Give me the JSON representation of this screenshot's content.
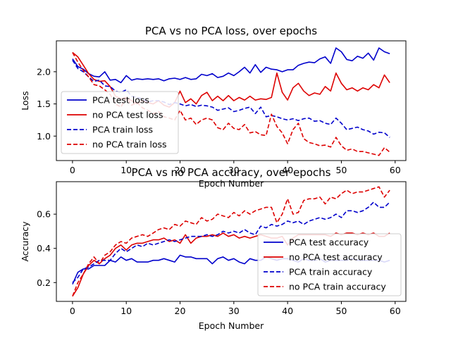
{
  "chart_data": [
    {
      "type": "line",
      "title": "PCA vs no PCA loss, over epochs",
      "xlabel": "Epoch Number",
      "ylabel": "Loss",
      "xlim": [
        -3,
        62
      ],
      "ylim": [
        0.62,
        2.48
      ],
      "xticks": [
        0,
        10,
        20,
        30,
        40,
        50,
        60
      ],
      "yticks": [
        1.0,
        1.5,
        2.0
      ],
      "yticks_labels": [
        "1.0",
        "1.5",
        "2.0"
      ],
      "legend": "lower-left",
      "grid": false,
      "x": [
        0,
        1,
        2,
        3,
        4,
        5,
        6,
        7,
        8,
        9,
        10,
        11,
        12,
        13,
        14,
        15,
        16,
        17,
        18,
        19,
        20,
        21,
        22,
        23,
        24,
        25,
        26,
        27,
        28,
        29,
        30,
        31,
        32,
        33,
        34,
        35,
        36,
        37,
        38,
        39,
        40,
        41,
        42,
        43,
        44,
        45,
        46,
        47,
        48,
        49,
        50,
        51,
        52,
        53,
        54,
        55,
        56,
        57,
        58,
        59
      ],
      "series": [
        {
          "name": "PCA test loss",
          "color": "#0000cc",
          "dash": "solid",
          "values": [
            2.2,
            2.08,
            2.04,
            1.97,
            1.93,
            1.92,
            2.0,
            1.87,
            1.88,
            1.83,
            1.94,
            1.87,
            1.89,
            1.88,
            1.89,
            1.88,
            1.89,
            1.86,
            1.89,
            1.9,
            1.88,
            1.91,
            1.88,
            1.89,
            1.96,
            1.94,
            1.97,
            1.91,
            1.93,
            1.98,
            1.94,
            2.0,
            2.07,
            1.98,
            2.11,
            1.99,
            2.07,
            2.04,
            2.03,
            2.0,
            2.03,
            2.03,
            2.1,
            2.13,
            2.15,
            2.14,
            2.2,
            2.23,
            2.13,
            2.37,
            2.31,
            2.19,
            2.17,
            2.24,
            2.21,
            2.29,
            2.18,
            2.37,
            2.31,
            2.28
          ]
        },
        {
          "name": "no PCA test loss",
          "color": "#dd0000",
          "dash": "solid",
          "values": [
            2.3,
            2.23,
            2.1,
            1.97,
            1.88,
            1.85,
            1.86,
            1.77,
            1.62,
            1.58,
            1.6,
            1.55,
            1.5,
            1.55,
            1.52,
            1.5,
            1.55,
            1.48,
            1.45,
            1.52,
            1.7,
            1.52,
            1.58,
            1.5,
            1.63,
            1.68,
            1.55,
            1.62,
            1.55,
            1.63,
            1.55,
            1.6,
            1.56,
            1.62,
            1.56,
            1.58,
            1.57,
            1.6,
            1.98,
            1.68,
            1.56,
            1.75,
            1.82,
            1.7,
            1.63,
            1.67,
            1.65,
            1.77,
            1.7,
            1.98,
            1.82,
            1.72,
            1.75,
            1.7,
            1.75,
            1.72,
            1.8,
            1.75,
            1.95,
            1.83
          ]
        },
        {
          "name": "PCA train loss",
          "color": "#0000cc",
          "dash": "dashed",
          "values": [
            2.18,
            2.05,
            2.0,
            1.92,
            1.85,
            1.87,
            1.78,
            1.77,
            1.7,
            1.68,
            1.72,
            1.62,
            1.6,
            1.58,
            1.53,
            1.55,
            1.55,
            1.53,
            1.49,
            1.52,
            1.5,
            1.47,
            1.49,
            1.46,
            1.48,
            1.47,
            1.45,
            1.4,
            1.42,
            1.44,
            1.38,
            1.4,
            1.43,
            1.45,
            1.35,
            1.45,
            1.3,
            1.32,
            1.3,
            1.27,
            1.25,
            1.27,
            1.24,
            1.27,
            1.28,
            1.23,
            1.24,
            1.2,
            1.18,
            1.28,
            1.2,
            1.1,
            1.12,
            1.14,
            1.1,
            1.08,
            1.03,
            1.06,
            1.05,
            0.98
          ]
        },
        {
          "name": "no PCA train loss",
          "color": "#dd0000",
          "dash": "dashed",
          "values": [
            2.3,
            2.15,
            2.02,
            1.92,
            1.8,
            1.78,
            1.72,
            1.65,
            1.5,
            1.45,
            1.6,
            1.48,
            1.52,
            1.44,
            1.4,
            1.35,
            1.38,
            1.3,
            1.28,
            1.25,
            1.4,
            1.25,
            1.28,
            1.18,
            1.25,
            1.28,
            1.25,
            1.13,
            1.1,
            1.2,
            1.12,
            1.1,
            1.18,
            1.05,
            1.07,
            1.02,
            1.01,
            1.34,
            1.15,
            1.05,
            0.88,
            1.1,
            1.2,
            0.96,
            0.9,
            0.88,
            0.85,
            0.86,
            0.83,
            0.98,
            0.85,
            0.78,
            0.8,
            0.76,
            0.76,
            0.74,
            0.72,
            0.7,
            0.82,
            0.75
          ]
        }
      ]
    },
    {
      "type": "line",
      "title": "PCA vs no PCA accuracy, over epochs",
      "xlabel": "Epoch Number",
      "ylabel": "Accuracy",
      "xlim": [
        -3,
        62
      ],
      "ylim": [
        0.09,
        0.79
      ],
      "xticks": [
        0,
        10,
        20,
        30,
        40,
        50,
        60
      ],
      "yticks": [
        0.2,
        0.4,
        0.6
      ],
      "yticks_labels": [
        "0.2",
        "0.4",
        "0.6"
      ],
      "legend": "lower-right",
      "grid": false,
      "x": [
        0,
        1,
        2,
        3,
        4,
        5,
        6,
        7,
        8,
        9,
        10,
        11,
        12,
        13,
        14,
        15,
        16,
        17,
        18,
        19,
        20,
        21,
        22,
        23,
        24,
        25,
        26,
        27,
        28,
        29,
        30,
        31,
        32,
        33,
        34,
        35,
        36,
        37,
        38,
        39,
        40,
        41,
        42,
        43,
        44,
        45,
        46,
        47,
        48,
        49,
        50,
        51,
        52,
        53,
        54,
        55,
        56,
        57,
        58,
        59
      ],
      "series": [
        {
          "name": "PCA test accuracy",
          "color": "#0000cc",
          "dash": "solid",
          "values": [
            0.19,
            0.26,
            0.28,
            0.28,
            0.3,
            0.3,
            0.3,
            0.33,
            0.32,
            0.35,
            0.33,
            0.34,
            0.32,
            0.32,
            0.32,
            0.33,
            0.33,
            0.34,
            0.33,
            0.32,
            0.36,
            0.35,
            0.35,
            0.34,
            0.34,
            0.34,
            0.31,
            0.34,
            0.35,
            0.33,
            0.34,
            0.32,
            0.31,
            0.34,
            0.33,
            0.33,
            0.35,
            0.34,
            0.33,
            0.34,
            0.34,
            0.33,
            0.32,
            0.34,
            0.33,
            0.33,
            0.34,
            0.32,
            0.33,
            0.33,
            0.33,
            0.33,
            0.34,
            0.33,
            0.33,
            0.33,
            0.33,
            0.33,
            0.32,
            0.33
          ]
        },
        {
          "name": "no PCA test accuracy",
          "color": "#dd0000",
          "dash": "solid",
          "values": [
            0.12,
            0.17,
            0.25,
            0.3,
            0.33,
            0.31,
            0.34,
            0.36,
            0.4,
            0.42,
            0.39,
            0.42,
            0.43,
            0.43,
            0.44,
            0.45,
            0.45,
            0.46,
            0.44,
            0.45,
            0.43,
            0.48,
            0.43,
            0.46,
            0.47,
            0.47,
            0.48,
            0.47,
            0.49,
            0.47,
            0.48,
            0.46,
            0.47,
            0.46,
            0.47,
            0.48,
            0.47,
            0.46,
            0.46,
            0.47,
            0.42,
            0.46,
            0.48,
            0.48,
            0.48,
            0.48,
            0.48,
            0.48,
            0.47,
            0.49,
            0.48,
            0.49,
            0.49,
            0.48,
            0.49,
            0.48,
            0.49,
            0.47,
            0.47,
            0.49
          ]
        },
        {
          "name": "PCA train accuracy",
          "color": "#0000cc",
          "dash": "dashed",
          "values": [
            0.2,
            0.23,
            0.28,
            0.29,
            0.31,
            0.33,
            0.33,
            0.33,
            0.37,
            0.4,
            0.38,
            0.4,
            0.42,
            0.41,
            0.43,
            0.42,
            0.43,
            0.44,
            0.45,
            0.44,
            0.45,
            0.46,
            0.47,
            0.47,
            0.47,
            0.48,
            0.47,
            0.48,
            0.5,
            0.49,
            0.5,
            0.49,
            0.51,
            0.49,
            0.48,
            0.53,
            0.52,
            0.54,
            0.53,
            0.54,
            0.56,
            0.55,
            0.56,
            0.54,
            0.56,
            0.57,
            0.58,
            0.57,
            0.58,
            0.6,
            0.58,
            0.62,
            0.62,
            0.61,
            0.62,
            0.64,
            0.67,
            0.64,
            0.64,
            0.67
          ]
        },
        {
          "name": "no PCA train accuracy",
          "color": "#dd0000",
          "dash": "dashed",
          "values": [
            0.12,
            0.2,
            0.25,
            0.31,
            0.35,
            0.31,
            0.36,
            0.38,
            0.42,
            0.44,
            0.43,
            0.46,
            0.47,
            0.48,
            0.47,
            0.49,
            0.51,
            0.52,
            0.51,
            0.54,
            0.53,
            0.56,
            0.55,
            0.54,
            0.58,
            0.56,
            0.57,
            0.6,
            0.59,
            0.58,
            0.61,
            0.59,
            0.62,
            0.6,
            0.62,
            0.63,
            0.64,
            0.64,
            0.55,
            0.6,
            0.69,
            0.6,
            0.61,
            0.68,
            0.69,
            0.69,
            0.7,
            0.66,
            0.7,
            0.69,
            0.72,
            0.74,
            0.72,
            0.73,
            0.73,
            0.74,
            0.75,
            0.76,
            0.7,
            0.74
          ]
        }
      ]
    }
  ]
}
